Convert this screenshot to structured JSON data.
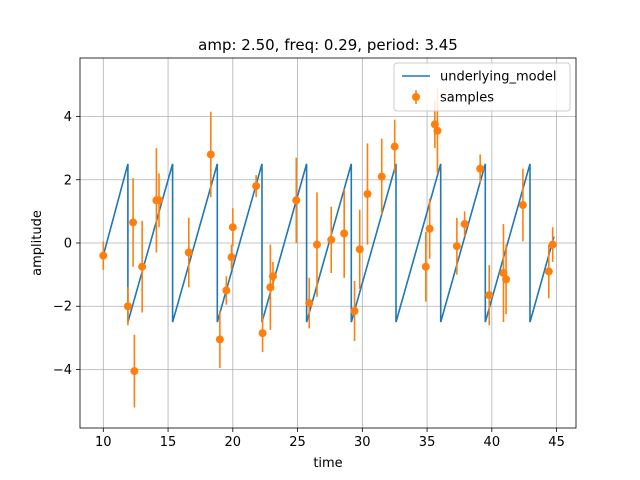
{
  "chart_data": {
    "type": "line",
    "title": "amp: 2.50, freq: 0.29, period: 3.45",
    "xlabel": "time",
    "ylabel": "amplitude",
    "xlim": [
      8.2,
      46.5
    ],
    "ylim": [
      -5.85,
      5.85
    ],
    "xticks": [
      10,
      15,
      20,
      25,
      30,
      35,
      40,
      45
    ],
    "yticks": [
      -4,
      -2,
      0,
      2,
      4
    ],
    "grid": true,
    "legend_position": "top-right",
    "series": [
      {
        "name": "underlying_model",
        "style": "line",
        "color": "#1f77b4",
        "x": [
          10.0,
          11.9,
          11.9,
          15.35,
          15.35,
          18.8,
          18.8,
          22.25,
          22.25,
          25.7,
          25.7,
          29.15,
          29.15,
          32.6,
          32.6,
          36.05,
          36.05,
          39.5,
          39.5,
          42.95,
          42.95,
          44.8
        ],
        "y": [
          -0.4,
          2.5,
          -2.5,
          2.5,
          -2.5,
          2.5,
          -2.5,
          2.5,
          -2.5,
          2.5,
          -2.5,
          2.5,
          -2.5,
          2.5,
          -2.5,
          2.5,
          -2.5,
          2.5,
          -2.5,
          2.5,
          -2.5,
          0.2
        ]
      },
      {
        "name": "samples",
        "style": "errorbar",
        "color": "#ff7f0e",
        "points": [
          {
            "x": 10.0,
            "y": -0.4,
            "err": 0.45
          },
          {
            "x": 11.9,
            "y": -2.0,
            "err": 0.6
          },
          {
            "x": 12.3,
            "y": 0.65,
            "err": 1.4
          },
          {
            "x": 12.4,
            "y": -4.05,
            "err": 1.15
          },
          {
            "x": 13.0,
            "y": -0.75,
            "err": 1.45
          },
          {
            "x": 14.1,
            "y": 1.35,
            "err": 1.65
          },
          {
            "x": 14.3,
            "y": 1.35,
            "err": 0.85
          },
          {
            "x": 16.6,
            "y": -0.3,
            "err": 1.1
          },
          {
            "x": 18.3,
            "y": 2.8,
            "err": 1.35
          },
          {
            "x": 19.0,
            "y": -3.05,
            "err": 0.9
          },
          {
            "x": 19.5,
            "y": -1.5,
            "err": 0.45
          },
          {
            "x": 19.9,
            "y": -0.45,
            "err": 0.4
          },
          {
            "x": 20.0,
            "y": 0.5,
            "err": 0.6
          },
          {
            "x": 21.8,
            "y": 1.8,
            "err": 0.35
          },
          {
            "x": 22.3,
            "y": -2.85,
            "err": 0.6
          },
          {
            "x": 22.9,
            "y": -1.4,
            "err": 1.35
          },
          {
            "x": 23.1,
            "y": -1.05,
            "err": 0.45
          },
          {
            "x": 24.9,
            "y": 1.35,
            "err": 1.35
          },
          {
            "x": 25.9,
            "y": -1.9,
            "err": 0.8
          },
          {
            "x": 26.5,
            "y": -0.05,
            "err": 1.65
          },
          {
            "x": 27.6,
            "y": 0.1,
            "err": 1.05
          },
          {
            "x": 28.6,
            "y": 0.3,
            "err": 1.4
          },
          {
            "x": 29.4,
            "y": -2.15,
            "err": 0.95
          },
          {
            "x": 29.8,
            "y": -0.2,
            "err": 1.25
          },
          {
            "x": 30.4,
            "y": 1.55,
            "err": 1.6
          },
          {
            "x": 31.5,
            "y": 2.1,
            "err": 1.2
          },
          {
            "x": 32.5,
            "y": 3.05,
            "err": 0.85
          },
          {
            "x": 34.9,
            "y": -0.75,
            "err": 1.1
          },
          {
            "x": 35.2,
            "y": 0.45,
            "err": 0.95
          },
          {
            "x": 35.6,
            "y": 3.75,
            "err": 0.75
          },
          {
            "x": 35.8,
            "y": 3.55,
            "err": 1.35
          },
          {
            "x": 37.3,
            "y": -0.1,
            "err": 0.9
          },
          {
            "x": 37.9,
            "y": 0.6,
            "err": 0.4
          },
          {
            "x": 39.1,
            "y": 2.35,
            "err": 0.45
          },
          {
            "x": 39.8,
            "y": -1.65,
            "err": 0.95
          },
          {
            "x": 40.9,
            "y": -0.95,
            "err": 1.55
          },
          {
            "x": 41.1,
            "y": -1.15,
            "err": 1.1
          },
          {
            "x": 42.4,
            "y": 1.2,
            "err": 1.15
          },
          {
            "x": 44.4,
            "y": -0.9,
            "err": 0.85
          },
          {
            "x": 44.7,
            "y": -0.05,
            "err": 0.55
          }
        ]
      }
    ]
  }
}
